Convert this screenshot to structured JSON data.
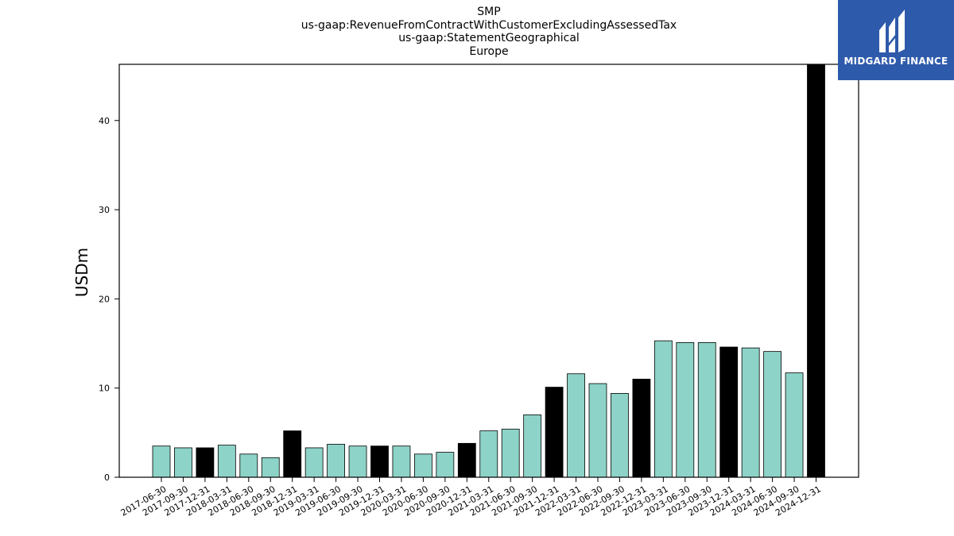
{
  "chart_data": {
    "type": "bar",
    "title_lines": [
      "SMP",
      "us-gaap:RevenueFromContractWithCustomerExcludingAssessedTax",
      "us-gaap:StatementGeographical",
      "Europe"
    ],
    "ylabel": "USDm",
    "xlabel": "",
    "ylim": [
      0,
      46.3
    ],
    "yticks": [
      0,
      10,
      20,
      30,
      40
    ],
    "grid": false,
    "categories": [
      "2017-06-30",
      "2017-09-30",
      "2017-12-31",
      "2018-03-31",
      "2018-06-30",
      "2018-09-30",
      "2018-12-31",
      "2019-03-31",
      "2019-06-30",
      "2019-09-30",
      "2019-12-31",
      "2020-03-31",
      "2020-06-30",
      "2020-09-30",
      "2020-12-31",
      "2021-03-31",
      "2021-06-30",
      "2021-09-30",
      "2021-12-31",
      "2022-03-31",
      "2022-06-30",
      "2022-09-30",
      "2022-12-31",
      "2023-03-31",
      "2023-06-30",
      "2023-09-30",
      "2023-12-31",
      "2024-03-31",
      "2024-06-30",
      "2024-09-30",
      "2024-12-31"
    ],
    "values": [
      3.5,
      3.3,
      3.3,
      3.6,
      2.6,
      2.2,
      5.2,
      3.3,
      3.7,
      3.5,
      3.5,
      3.5,
      2.6,
      2.8,
      3.8,
      5.2,
      5.4,
      7.0,
      10.1,
      11.6,
      10.5,
      9.4,
      11.0,
      15.3,
      15.1,
      15.1,
      14.6,
      14.5,
      14.1,
      11.7,
      46.3
    ],
    "annual_flags": [
      false,
      false,
      true,
      false,
      false,
      false,
      true,
      false,
      false,
      false,
      true,
      false,
      false,
      false,
      true,
      false,
      false,
      false,
      true,
      false,
      false,
      false,
      true,
      false,
      false,
      false,
      true,
      false,
      false,
      false,
      true
    ],
    "colors": {
      "quarter": "#8dd3c7",
      "annual": "#000000",
      "edge": "#000000"
    }
  },
  "logo": {
    "text": "MIDGARD FINANCE",
    "color": "#2e5aab"
  }
}
